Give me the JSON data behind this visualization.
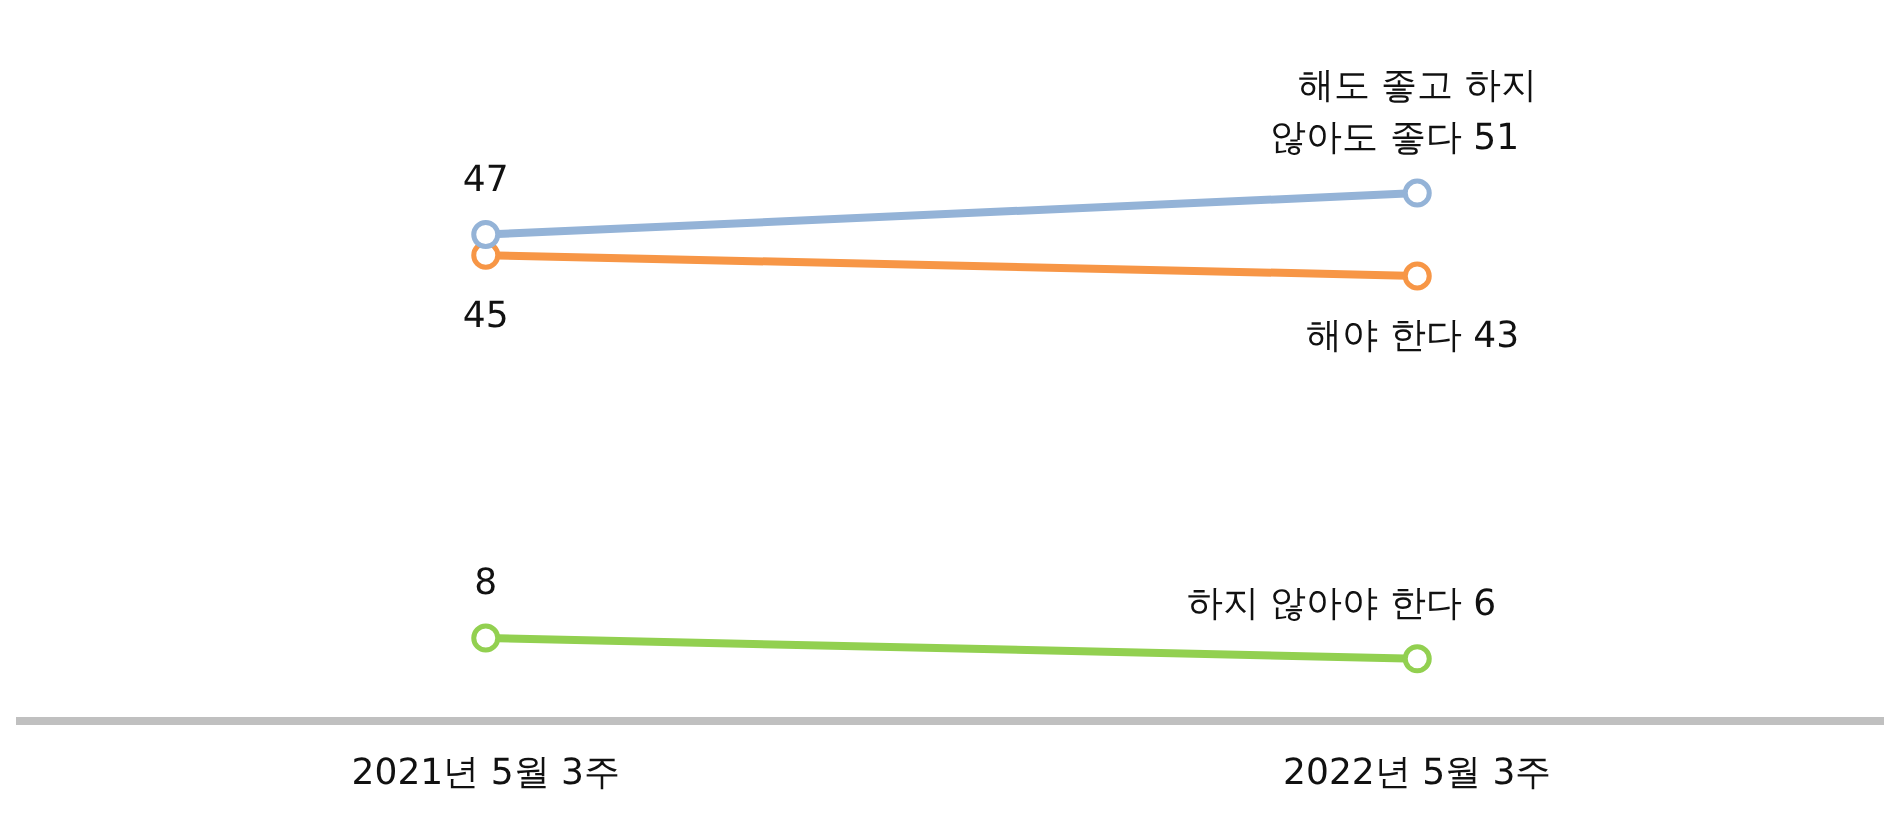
{
  "chart_data": {
    "type": "line",
    "categories": [
      "2021년 5월 3주",
      "2022년 5월 3주"
    ],
    "series": [
      {
        "name": "해도 좋고 하지 않아도 좋다",
        "color": "#94b3d7",
        "values": [
          47,
          51
        ]
      },
      {
        "name": "해야 한다",
        "color": "#f79646",
        "values": [
          45,
          43
        ]
      },
      {
        "name": "하지 않아야 한다",
        "color": "#92d050",
        "values": [
          8,
          6
        ]
      }
    ],
    "tick_labels": "x",
    "data_labels": true,
    "marker": "circle",
    "line_style": "solid",
    "legend": false,
    "grid": false
  }
}
